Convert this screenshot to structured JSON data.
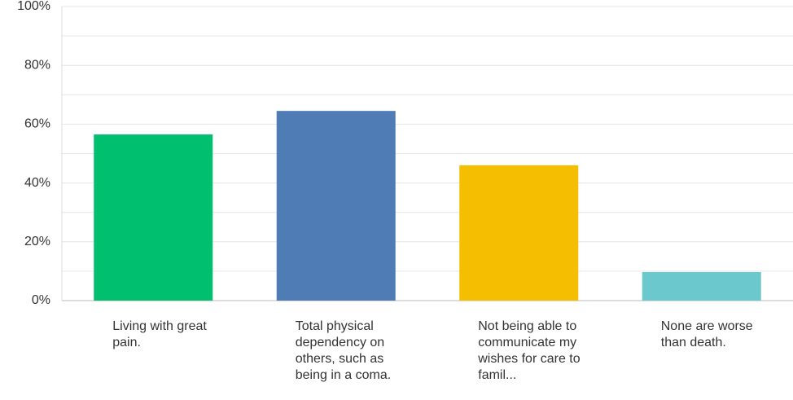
{
  "chart_data": {
    "type": "bar",
    "categories": [
      "Living with great pain.",
      "Total physical dependency on others, such as being in a coma.",
      "Not being able to communicate my wishes for care to famil...",
      "None are worse than death."
    ],
    "values": [
      56.5,
      64.5,
      46,
      9.7
    ],
    "colors": [
      "#00bf6f",
      "#507cb6",
      "#f5be00",
      "#6bc8cd"
    ],
    "ylim": [
      0,
      100
    ],
    "yticks": [
      {
        "value": 0,
        "label": "0%"
      },
      {
        "value": 20,
        "label": "20%"
      },
      {
        "value": 40,
        "label": "40%"
      },
      {
        "value": 60,
        "label": "60%"
      },
      {
        "value": 80,
        "label": "80%"
      },
      {
        "value": 100,
        "label": "100%"
      }
    ],
    "minor_yticks": [
      10,
      30,
      50,
      70,
      90
    ],
    "grid": true
  }
}
